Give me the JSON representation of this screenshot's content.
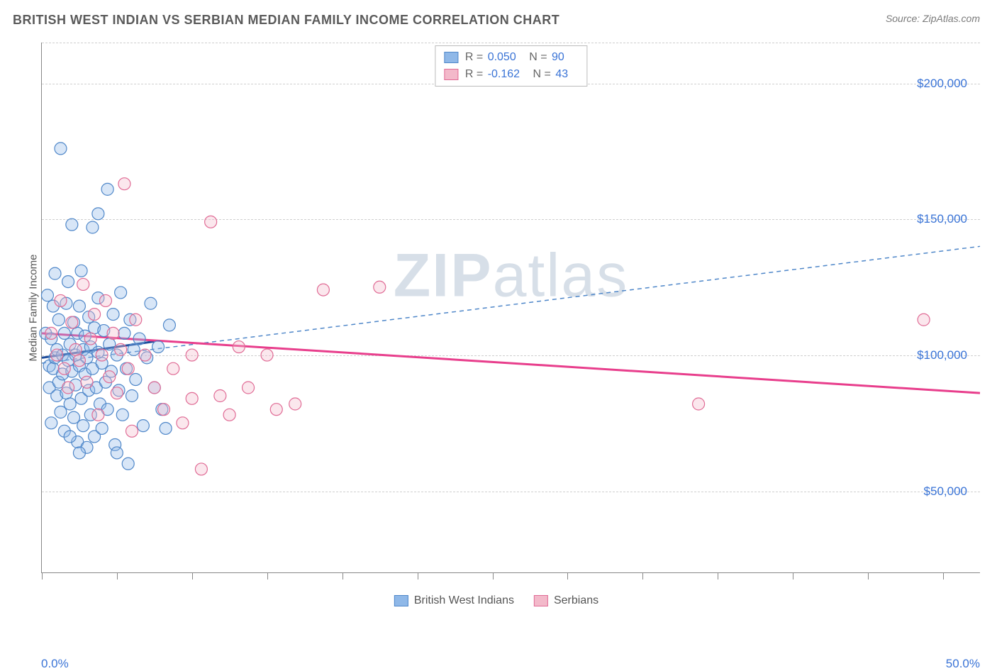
{
  "title": "BRITISH WEST INDIAN VS SERBIAN MEDIAN FAMILY INCOME CORRELATION CHART",
  "source": "Source: ZipAtlas.com",
  "watermark": {
    "part1": "ZIP",
    "part2": "atlas"
  },
  "chart": {
    "type": "scatter-with-regression",
    "background_color": "#ffffff",
    "grid_color": "#cfcfcf",
    "axis_color": "#888888",
    "tick_label_color": "#3973d6",
    "axis_label_color": "#555555",
    "xlim": [
      0,
      50
    ],
    "ylim": [
      20000,
      215000
    ],
    "x_tick_positions": [
      0,
      4,
      8,
      12,
      16,
      20,
      24,
      28,
      32,
      36,
      40,
      44,
      48
    ],
    "x_tick_labels": {
      "0": "0.0%",
      "50": "50.0%"
    },
    "y_gridlines": [
      50000,
      100000,
      150000,
      200000
    ],
    "y_tick_labels": {
      "50000": "$50,000",
      "100000": "$100,000",
      "150000": "$150,000",
      "200000": "$200,000"
    },
    "y_axis_title": "Median Family Income",
    "marker_radius": 8.5,
    "marker_stroke_width": 1.2,
    "marker_fill_opacity": 0.35,
    "series": [
      {
        "key": "bwi",
        "label": "British West Indians",
        "fill_color": "#8fb8e8",
        "stroke_color": "#4f87c9",
        "R": "0.050",
        "N": "90",
        "regression": {
          "x1": 0,
          "y1": 97000,
          "x2": 50,
          "y2": 140000,
          "dash": "6,5",
          "width": 1.5,
          "color": "#4f87c9"
        },
        "short_line": {
          "x1": 0,
          "y1": 99000,
          "x2": 6,
          "y2": 105000,
          "width": 3,
          "color": "#1f4e9c"
        },
        "points": [
          [
            0.2,
            108000
          ],
          [
            0.3,
            122000
          ],
          [
            0.4,
            96000
          ],
          [
            0.4,
            88000
          ],
          [
            0.5,
            106000
          ],
          [
            0.5,
            75000
          ],
          [
            0.6,
            118000
          ],
          [
            0.6,
            95000
          ],
          [
            0.7,
            130000
          ],
          [
            0.7,
            99000
          ],
          [
            0.8,
            85000
          ],
          [
            0.8,
            102000
          ],
          [
            0.9,
            113000
          ],
          [
            0.9,
            90000
          ],
          [
            1.0,
            79000
          ],
          [
            1.0,
            176000
          ],
          [
            1.1,
            100000
          ],
          [
            1.1,
            93000
          ],
          [
            1.2,
            108000
          ],
          [
            1.2,
            72000
          ],
          [
            1.3,
            119000
          ],
          [
            1.3,
            86000
          ],
          [
            1.4,
            98000
          ],
          [
            1.4,
            127000
          ],
          [
            1.5,
            104000
          ],
          [
            1.5,
            82000
          ],
          [
            1.6,
            148000
          ],
          [
            1.6,
            94000
          ],
          [
            1.7,
            112000
          ],
          [
            1.7,
            77000
          ],
          [
            1.8,
            100000
          ],
          [
            1.8,
            89000
          ],
          [
            1.9,
            68000
          ],
          [
            1.9,
            108000
          ],
          [
            2.0,
            118000
          ],
          [
            2.0,
            96000
          ],
          [
            2.1,
            131000
          ],
          [
            2.1,
            84000
          ],
          [
            2.2,
            102000
          ],
          [
            2.2,
            74000
          ],
          [
            2.3,
            93000
          ],
          [
            2.3,
            107000
          ],
          [
            2.4,
            66000
          ],
          [
            2.4,
            99000
          ],
          [
            2.5,
            114000
          ],
          [
            2.5,
            87000
          ],
          [
            2.6,
            103000
          ],
          [
            2.6,
            78000
          ],
          [
            2.7,
            147000
          ],
          [
            2.7,
            95000
          ],
          [
            2.8,
            70000
          ],
          [
            2.8,
            110000
          ],
          [
            2.9,
            88000
          ],
          [
            3.0,
            101000
          ],
          [
            3.0,
            121000
          ],
          [
            3.1,
            82000
          ],
          [
            3.2,
            97000
          ],
          [
            3.2,
            73000
          ],
          [
            3.3,
            109000
          ],
          [
            3.4,
            90000
          ],
          [
            3.5,
            161000
          ],
          [
            3.5,
            80000
          ],
          [
            3.6,
            104000
          ],
          [
            3.7,
            94000
          ],
          [
            3.8,
            115000
          ],
          [
            3.9,
            67000
          ],
          [
            4.0,
            100000
          ],
          [
            4.1,
            87000
          ],
          [
            4.2,
            123000
          ],
          [
            4.3,
            78000
          ],
          [
            4.4,
            108000
          ],
          [
            4.5,
            95000
          ],
          [
            4.6,
            60000
          ],
          [
            4.7,
            113000
          ],
          [
            4.8,
            85000
          ],
          [
            4.9,
            102000
          ],
          [
            5.0,
            91000
          ],
          [
            5.2,
            106000
          ],
          [
            5.4,
            74000
          ],
          [
            5.6,
            99000
          ],
          [
            5.8,
            119000
          ],
          [
            6.0,
            88000
          ],
          [
            6.2,
            103000
          ],
          [
            6.4,
            80000
          ],
          [
            6.6,
            73000
          ],
          [
            6.8,
            111000
          ],
          [
            4.0,
            64000
          ],
          [
            3.0,
            152000
          ],
          [
            2.0,
            64000
          ],
          [
            1.5,
            70000
          ]
        ]
      },
      {
        "key": "serb",
        "label": "Serbians",
        "fill_color": "#f3b9ca",
        "stroke_color": "#e06b95",
        "R": "-0.162",
        "N": "43",
        "regression": {
          "x1": 0,
          "y1": 108000,
          "x2": 50,
          "y2": 86000,
          "dash": "none",
          "width": 3,
          "color": "#e83e8c"
        },
        "points": [
          [
            0.5,
            108000
          ],
          [
            0.8,
            100000
          ],
          [
            1.0,
            120000
          ],
          [
            1.2,
            95000
          ],
          [
            1.4,
            88000
          ],
          [
            1.6,
            112000
          ],
          [
            1.8,
            102000
          ],
          [
            2.0,
            98000
          ],
          [
            2.2,
            126000
          ],
          [
            2.4,
            90000
          ],
          [
            2.6,
            106000
          ],
          [
            2.8,
            115000
          ],
          [
            3.0,
            78000
          ],
          [
            3.2,
            100000
          ],
          [
            3.4,
            120000
          ],
          [
            3.6,
            92000
          ],
          [
            3.8,
            108000
          ],
          [
            4.0,
            86000
          ],
          [
            4.2,
            102000
          ],
          [
            4.4,
            163000
          ],
          [
            4.6,
            95000
          ],
          [
            4.8,
            72000
          ],
          [
            5.0,
            113000
          ],
          [
            5.5,
            100000
          ],
          [
            6.0,
            88000
          ],
          [
            6.5,
            80000
          ],
          [
            7.0,
            95000
          ],
          [
            7.5,
            75000
          ],
          [
            8.0,
            100000
          ],
          [
            8.5,
            58000
          ],
          [
            9.0,
            149000
          ],
          [
            9.5,
            85000
          ],
          [
            10.0,
            78000
          ],
          [
            10.5,
            103000
          ],
          [
            11.0,
            88000
          ],
          [
            12.0,
            100000
          ],
          [
            12.5,
            80000
          ],
          [
            13.5,
            82000
          ],
          [
            15.0,
            124000
          ],
          [
            18.0,
            125000
          ],
          [
            35.0,
            82000
          ],
          [
            47.0,
            113000
          ],
          [
            8.0,
            84000
          ]
        ]
      }
    ],
    "legend_top_swatch_border": {
      "bwi": "#4f87c9",
      "serb": "#e06b95"
    }
  }
}
